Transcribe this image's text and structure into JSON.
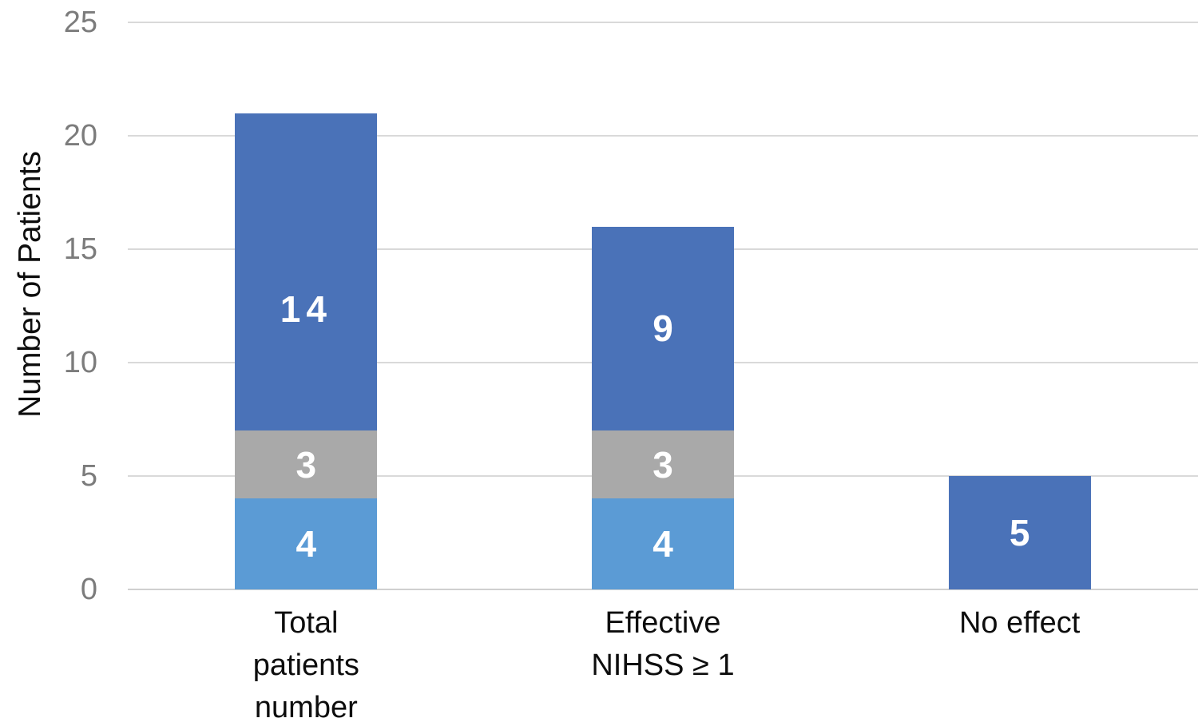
{
  "chart_data": {
    "type": "bar",
    "stacked": true,
    "title": "",
    "ylabel": "Number of Patients",
    "xlabel": "",
    "categories": [
      [
        "Total",
        "patients",
        "number"
      ],
      [
        "Effective",
        "NIHSS ≥ 1"
      ],
      [
        "No effect"
      ]
    ],
    "series": [
      {
        "name": "light-blue-segment",
        "color": "#5B9BD5",
        "values": [
          4,
          4,
          null
        ]
      },
      {
        "name": "gray-segment",
        "color": "#A9A9A9",
        "values": [
          3,
          3,
          null
        ]
      },
      {
        "name": "dark-blue-segment",
        "color": "#4A72B8",
        "values": [
          14,
          9,
          5
        ],
        "label_dy": [
          47,
          0,
          0
        ]
      }
    ],
    "stack_totals": [
      21,
      16,
      5
    ],
    "yticks": [
      0,
      5,
      10,
      15,
      20,
      25
    ],
    "ylim": [
      0,
      25
    ],
    "grid": true,
    "legend": false,
    "value_label_color": "#FFFFFF",
    "gridline_color": "#D9D9D9",
    "tick_label_color": "#7C7C7C"
  }
}
